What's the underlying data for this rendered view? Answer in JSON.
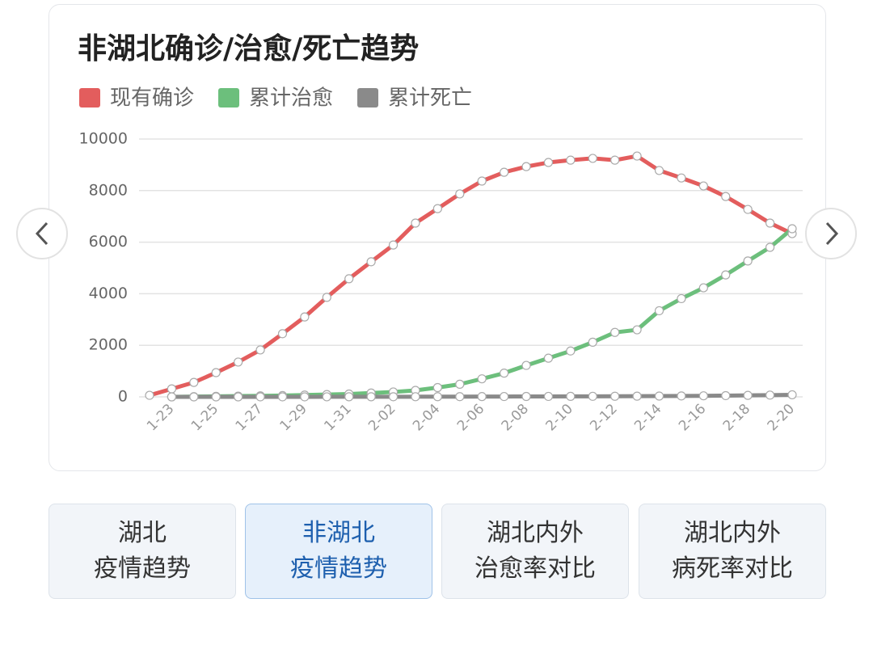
{
  "chart_data": {
    "type": "line",
    "title": "非湖北确诊/治愈/死亡趋势",
    "legend": "top-left",
    "grid": true,
    "categories": [
      null,
      "1-23",
      null,
      "1-25",
      null,
      "1-27",
      null,
      "1-29",
      null,
      "1-31",
      null,
      "2-02",
      null,
      "2-04",
      null,
      "2-06",
      null,
      "2-08",
      null,
      "2-10",
      null,
      "2-12",
      null,
      "2-14",
      null,
      "2-16",
      null,
      "2-18",
      null,
      "2-20"
    ],
    "ylim": [
      0,
      10000
    ],
    "yticks": [
      0,
      2000,
      4000,
      6000,
      8000,
      10000
    ],
    "series": [
      {
        "name": "现有确诊",
        "color": "#e35d5d",
        "values": [
          60,
          310,
          560,
          940,
          1350,
          1820,
          2450,
          3100,
          3860,
          4580,
          5240,
          5890,
          6740,
          7300,
          7870,
          8370,
          8710,
          8930,
          9090,
          9180,
          9250,
          9180,
          9340,
          8780,
          8490,
          8180,
          7770,
          7270,
          6740,
          6330
        ]
      },
      {
        "name": "累计治愈",
        "color": "#6cbf7c",
        "values": [
          null,
          0,
          10,
          20,
          30,
          40,
          50,
          70,
          90,
          110,
          150,
          190,
          250,
          360,
          490,
          700,
          920,
          1220,
          1500,
          1780,
          2120,
          2500,
          2600,
          3340,
          3810,
          4230,
          4730,
          5270,
          5800,
          6520
        ]
      },
      {
        "name": "累计死亡",
        "color": "#8a8a8a",
        "values": [
          null,
          0,
          0,
          0,
          0,
          1,
          1,
          1,
          2,
          3,
          4,
          5,
          6,
          7,
          9,
          11,
          13,
          15,
          17,
          19,
          21,
          24,
          27,
          31,
          36,
          41,
          48,
          58,
          68,
          80
        ]
      }
    ]
  },
  "tabs": [
    {
      "lines": [
        "湖北",
        "疫情趋势"
      ]
    },
    {
      "lines": [
        "非湖北",
        "疫情趋势"
      ]
    },
    {
      "lines": [
        "湖北内外",
        "治愈率对比"
      ]
    },
    {
      "lines": [
        "湖北内外",
        "病死率对比"
      ]
    }
  ],
  "active_tab": 1
}
